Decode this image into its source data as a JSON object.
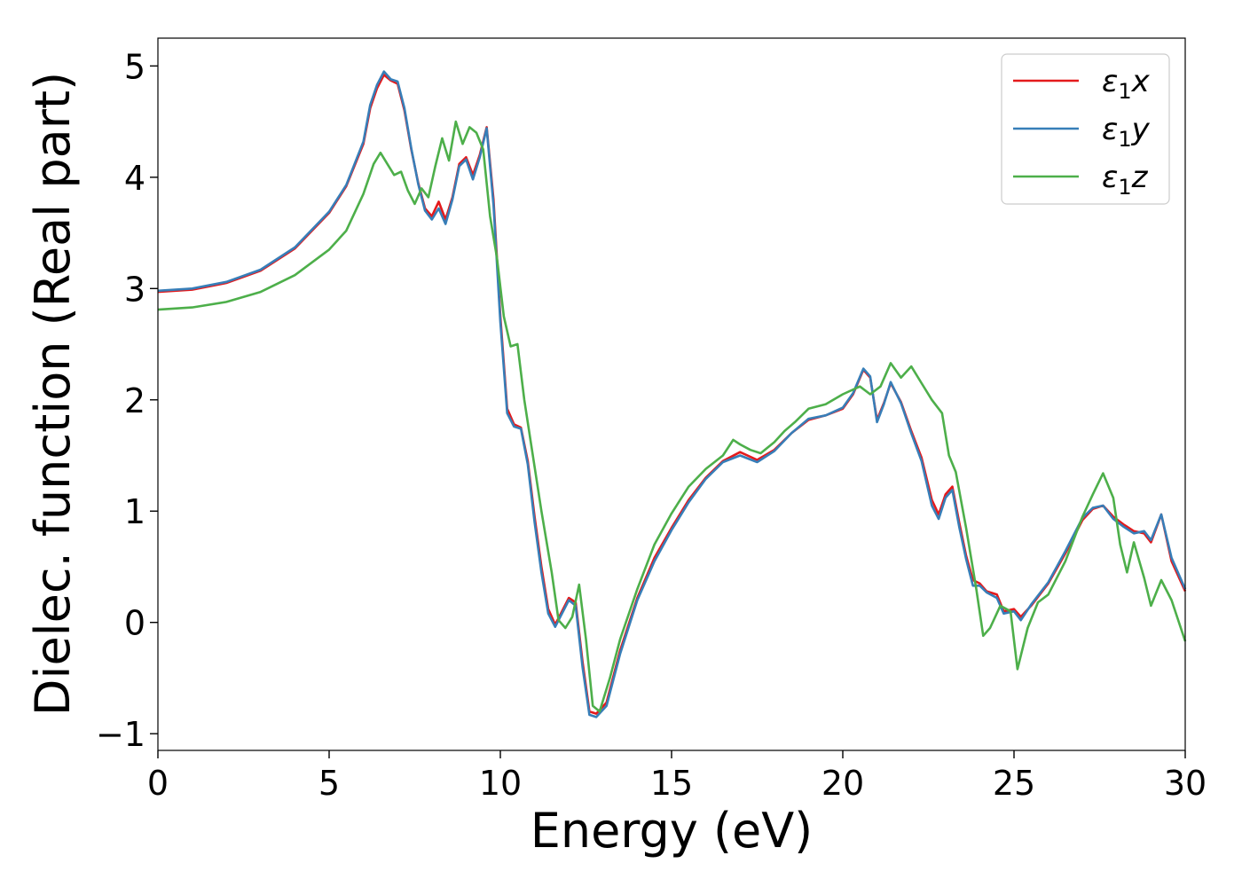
{
  "chart_data": {
    "type": "line",
    "xlabel": "Energy (eV)",
    "ylabel": "Dielec. function (Real part)",
    "xlim": [
      0,
      30
    ],
    "ylim": [
      -1.15,
      5.25
    ],
    "xticks": [
      0,
      5,
      10,
      15,
      20,
      25,
      30
    ],
    "yticks": [
      -1,
      0,
      1,
      2,
      3,
      4,
      5
    ],
    "xtick_labels": [
      "0",
      "5",
      "10",
      "15",
      "20",
      "25",
      "30"
    ],
    "ytick_labels": [
      "−1",
      "0",
      "1",
      "2",
      "3",
      "4",
      "5"
    ],
    "grid": false,
    "legend_position": "top-right",
    "series": [
      {
        "name": "ε1x",
        "legend_base": "ε",
        "legend_sub": "1",
        "legend_suffix": "x",
        "color": "#e41a1c",
        "points": [
          [
            0,
            2.97
          ],
          [
            1,
            2.99
          ],
          [
            2,
            3.05
          ],
          [
            3,
            3.16
          ],
          [
            4,
            3.36
          ],
          [
            5,
            3.68
          ],
          [
            5.5,
            3.92
          ],
          [
            6,
            4.3
          ],
          [
            6.2,
            4.62
          ],
          [
            6.4,
            4.8
          ],
          [
            6.6,
            4.92
          ],
          [
            6.8,
            4.87
          ],
          [
            7,
            4.84
          ],
          [
            7.2,
            4.6
          ],
          [
            7.4,
            4.25
          ],
          [
            7.6,
            3.95
          ],
          [
            7.8,
            3.72
          ],
          [
            8,
            3.65
          ],
          [
            8.2,
            3.78
          ],
          [
            8.4,
            3.62
          ],
          [
            8.6,
            3.82
          ],
          [
            8.8,
            4.12
          ],
          [
            9,
            4.18
          ],
          [
            9.2,
            4.02
          ],
          [
            9.4,
            4.2
          ],
          [
            9.6,
            4.45
          ],
          [
            9.8,
            3.8
          ],
          [
            10,
            2.75
          ],
          [
            10.2,
            1.92
          ],
          [
            10.4,
            1.78
          ],
          [
            10.6,
            1.75
          ],
          [
            10.8,
            1.45
          ],
          [
            11,
            0.95
          ],
          [
            11.2,
            0.5
          ],
          [
            11.4,
            0.12
          ],
          [
            11.6,
            -0.02
          ],
          [
            11.8,
            0.1
          ],
          [
            12,
            0.22
          ],
          [
            12.2,
            0.18
          ],
          [
            12.4,
            -0.35
          ],
          [
            12.6,
            -0.8
          ],
          [
            12.8,
            -0.82
          ],
          [
            13.1,
            -0.72
          ],
          [
            13.5,
            -0.25
          ],
          [
            14,
            0.22
          ],
          [
            14.5,
            0.58
          ],
          [
            15,
            0.85
          ],
          [
            15.5,
            1.1
          ],
          [
            16,
            1.3
          ],
          [
            16.5,
            1.45
          ],
          [
            17,
            1.53
          ],
          [
            17.5,
            1.46
          ],
          [
            18,
            1.55
          ],
          [
            18.5,
            1.7
          ],
          [
            19,
            1.82
          ],
          [
            19.5,
            1.86
          ],
          [
            20,
            1.92
          ],
          [
            20.3,
            2.05
          ],
          [
            20.6,
            2.27
          ],
          [
            20.8,
            2.2
          ],
          [
            21,
            1.82
          ],
          [
            21.2,
            1.97
          ],
          [
            21.4,
            2.15
          ],
          [
            21.7,
            1.98
          ],
          [
            22,
            1.72
          ],
          [
            22.3,
            1.48
          ],
          [
            22.6,
            1.1
          ],
          [
            22.8,
            0.97
          ],
          [
            23,
            1.15
          ],
          [
            23.2,
            1.22
          ],
          [
            23.4,
            0.9
          ],
          [
            23.6,
            0.6
          ],
          [
            23.8,
            0.38
          ],
          [
            24,
            0.35
          ],
          [
            24.2,
            0.28
          ],
          [
            24.5,
            0.25
          ],
          [
            24.7,
            0.1
          ],
          [
            25,
            0.12
          ],
          [
            25.2,
            0.05
          ],
          [
            25.5,
            0.15
          ],
          [
            26,
            0.35
          ],
          [
            26.5,
            0.62
          ],
          [
            27,
            0.92
          ],
          [
            27.3,
            1.02
          ],
          [
            27.6,
            1.05
          ],
          [
            27.9,
            0.95
          ],
          [
            28.2,
            0.88
          ],
          [
            28.5,
            0.82
          ],
          [
            28.8,
            0.8
          ],
          [
            29,
            0.72
          ],
          [
            29.3,
            0.97
          ],
          [
            29.6,
            0.55
          ],
          [
            30,
            0.28
          ]
        ]
      },
      {
        "name": "ε1y",
        "legend_base": "ε",
        "legend_sub": "1",
        "legend_suffix": "y",
        "color": "#377eb8",
        "points": [
          [
            0,
            2.98
          ],
          [
            1,
            3
          ],
          [
            2,
            3.06
          ],
          [
            3,
            3.17
          ],
          [
            4,
            3.37
          ],
          [
            5,
            3.69
          ],
          [
            5.5,
            3.93
          ],
          [
            6,
            4.32
          ],
          [
            6.2,
            4.65
          ],
          [
            6.4,
            4.83
          ],
          [
            6.6,
            4.95
          ],
          [
            6.8,
            4.88
          ],
          [
            7,
            4.86
          ],
          [
            7.2,
            4.62
          ],
          [
            7.4,
            4.26
          ],
          [
            7.6,
            3.94
          ],
          [
            7.8,
            3.7
          ],
          [
            8,
            3.62
          ],
          [
            8.2,
            3.72
          ],
          [
            8.4,
            3.58
          ],
          [
            8.6,
            3.8
          ],
          [
            8.8,
            4.1
          ],
          [
            9,
            4.16
          ],
          [
            9.2,
            3.98
          ],
          [
            9.4,
            4.18
          ],
          [
            9.6,
            4.44
          ],
          [
            9.8,
            3.75
          ],
          [
            10,
            2.7
          ],
          [
            10.2,
            1.88
          ],
          [
            10.4,
            1.76
          ],
          [
            10.6,
            1.74
          ],
          [
            10.8,
            1.42
          ],
          [
            11,
            0.9
          ],
          [
            11.2,
            0.45
          ],
          [
            11.4,
            0.08
          ],
          [
            11.6,
            -0.04
          ],
          [
            11.8,
            0.08
          ],
          [
            12,
            0.2
          ],
          [
            12.2,
            0.15
          ],
          [
            12.4,
            -0.4
          ],
          [
            12.6,
            -0.83
          ],
          [
            12.8,
            -0.85
          ],
          [
            13.1,
            -0.75
          ],
          [
            13.5,
            -0.28
          ],
          [
            14,
            0.2
          ],
          [
            14.5,
            0.55
          ],
          [
            15,
            0.83
          ],
          [
            15.5,
            1.08
          ],
          [
            16,
            1.29
          ],
          [
            16.5,
            1.44
          ],
          [
            17,
            1.5
          ],
          [
            17.5,
            1.44
          ],
          [
            18,
            1.54
          ],
          [
            18.5,
            1.7
          ],
          [
            19,
            1.83
          ],
          [
            19.5,
            1.86
          ],
          [
            20,
            1.93
          ],
          [
            20.3,
            2.06
          ],
          [
            20.6,
            2.28
          ],
          [
            20.8,
            2.21
          ],
          [
            21,
            1.8
          ],
          [
            21.2,
            1.96
          ],
          [
            21.4,
            2.16
          ],
          [
            21.7,
            1.97
          ],
          [
            22,
            1.7
          ],
          [
            22.3,
            1.45
          ],
          [
            22.6,
            1.05
          ],
          [
            22.8,
            0.93
          ],
          [
            23,
            1.12
          ],
          [
            23.2,
            1.19
          ],
          [
            23.4,
            0.86
          ],
          [
            23.6,
            0.57
          ],
          [
            23.8,
            0.33
          ],
          [
            24,
            0.33
          ],
          [
            24.2,
            0.27
          ],
          [
            24.5,
            0.22
          ],
          [
            24.7,
            0.08
          ],
          [
            25,
            0.1
          ],
          [
            25.2,
            0.02
          ],
          [
            25.5,
            0.16
          ],
          [
            26,
            0.36
          ],
          [
            26.5,
            0.64
          ],
          [
            27,
            0.94
          ],
          [
            27.3,
            1.03
          ],
          [
            27.6,
            1.05
          ],
          [
            27.9,
            0.93
          ],
          [
            28.2,
            0.86
          ],
          [
            28.5,
            0.8
          ],
          [
            28.8,
            0.82
          ],
          [
            29,
            0.74
          ],
          [
            29.3,
            0.97
          ],
          [
            29.6,
            0.58
          ],
          [
            30,
            0.3
          ]
        ]
      },
      {
        "name": "ε1z",
        "legend_base": "ε",
        "legend_sub": "1",
        "legend_suffix": "z",
        "color": "#4daf4a",
        "points": [
          [
            0,
            2.81
          ],
          [
            1,
            2.83
          ],
          [
            2,
            2.88
          ],
          [
            3,
            2.97
          ],
          [
            4,
            3.12
          ],
          [
            5,
            3.35
          ],
          [
            5.5,
            3.52
          ],
          [
            6,
            3.85
          ],
          [
            6.3,
            4.12
          ],
          [
            6.5,
            4.22
          ],
          [
            6.7,
            4.12
          ],
          [
            6.9,
            4.02
          ],
          [
            7.1,
            4.05
          ],
          [
            7.3,
            3.88
          ],
          [
            7.5,
            3.76
          ],
          [
            7.7,
            3.9
          ],
          [
            7.9,
            3.82
          ],
          [
            8.1,
            4.1
          ],
          [
            8.3,
            4.35
          ],
          [
            8.5,
            4.15
          ],
          [
            8.7,
            4.5
          ],
          [
            8.9,
            4.3
          ],
          [
            9.1,
            4.45
          ],
          [
            9.3,
            4.4
          ],
          [
            9.5,
            4.25
          ],
          [
            9.7,
            3.65
          ],
          [
            9.9,
            3.28
          ],
          [
            10.1,
            2.75
          ],
          [
            10.3,
            2.48
          ],
          [
            10.5,
            2.5
          ],
          [
            10.7,
            2
          ],
          [
            10.9,
            1.6
          ],
          [
            11.2,
            1
          ],
          [
            11.5,
            0.45
          ],
          [
            11.7,
            0.02
          ],
          [
            11.9,
            -0.05
          ],
          [
            12.1,
            0.05
          ],
          [
            12.3,
            0.34
          ],
          [
            12.5,
            -0.15
          ],
          [
            12.7,
            -0.75
          ],
          [
            12.9,
            -0.8
          ],
          [
            13.2,
            -0.5
          ],
          [
            13.5,
            -0.15
          ],
          [
            14,
            0.3
          ],
          [
            14.5,
            0.7
          ],
          [
            15,
            0.98
          ],
          [
            15.5,
            1.22
          ],
          [
            16,
            1.38
          ],
          [
            16.5,
            1.5
          ],
          [
            16.8,
            1.64
          ],
          [
            17,
            1.6
          ],
          [
            17.3,
            1.55
          ],
          [
            17.6,
            1.52
          ],
          [
            18,
            1.62
          ],
          [
            18.3,
            1.72
          ],
          [
            18.6,
            1.8
          ],
          [
            19,
            1.92
          ],
          [
            19.5,
            1.96
          ],
          [
            20,
            2.05
          ],
          [
            20.5,
            2.12
          ],
          [
            20.8,
            2.05
          ],
          [
            21.1,
            2.12
          ],
          [
            21.4,
            2.33
          ],
          [
            21.7,
            2.2
          ],
          [
            22,
            2.3
          ],
          [
            22.3,
            2.15
          ],
          [
            22.6,
            2
          ],
          [
            22.9,
            1.88
          ],
          [
            23.1,
            1.5
          ],
          [
            23.3,
            1.35
          ],
          [
            23.6,
            0.85
          ],
          [
            23.9,
            0.3
          ],
          [
            24.1,
            -0.12
          ],
          [
            24.3,
            -0.05
          ],
          [
            24.6,
            0.15
          ],
          [
            24.9,
            0.1
          ],
          [
            25.1,
            -0.42
          ],
          [
            25.4,
            -0.05
          ],
          [
            25.7,
            0.18
          ],
          [
            26,
            0.25
          ],
          [
            26.5,
            0.55
          ],
          [
            27,
            0.95
          ],
          [
            27.3,
            1.15
          ],
          [
            27.6,
            1.34
          ],
          [
            27.9,
            1.12
          ],
          [
            28.1,
            0.7
          ],
          [
            28.3,
            0.45
          ],
          [
            28.5,
            0.72
          ],
          [
            28.8,
            0.4
          ],
          [
            29,
            0.15
          ],
          [
            29.3,
            0.38
          ],
          [
            29.6,
            0.2
          ],
          [
            30,
            -0.17
          ]
        ]
      }
    ]
  }
}
